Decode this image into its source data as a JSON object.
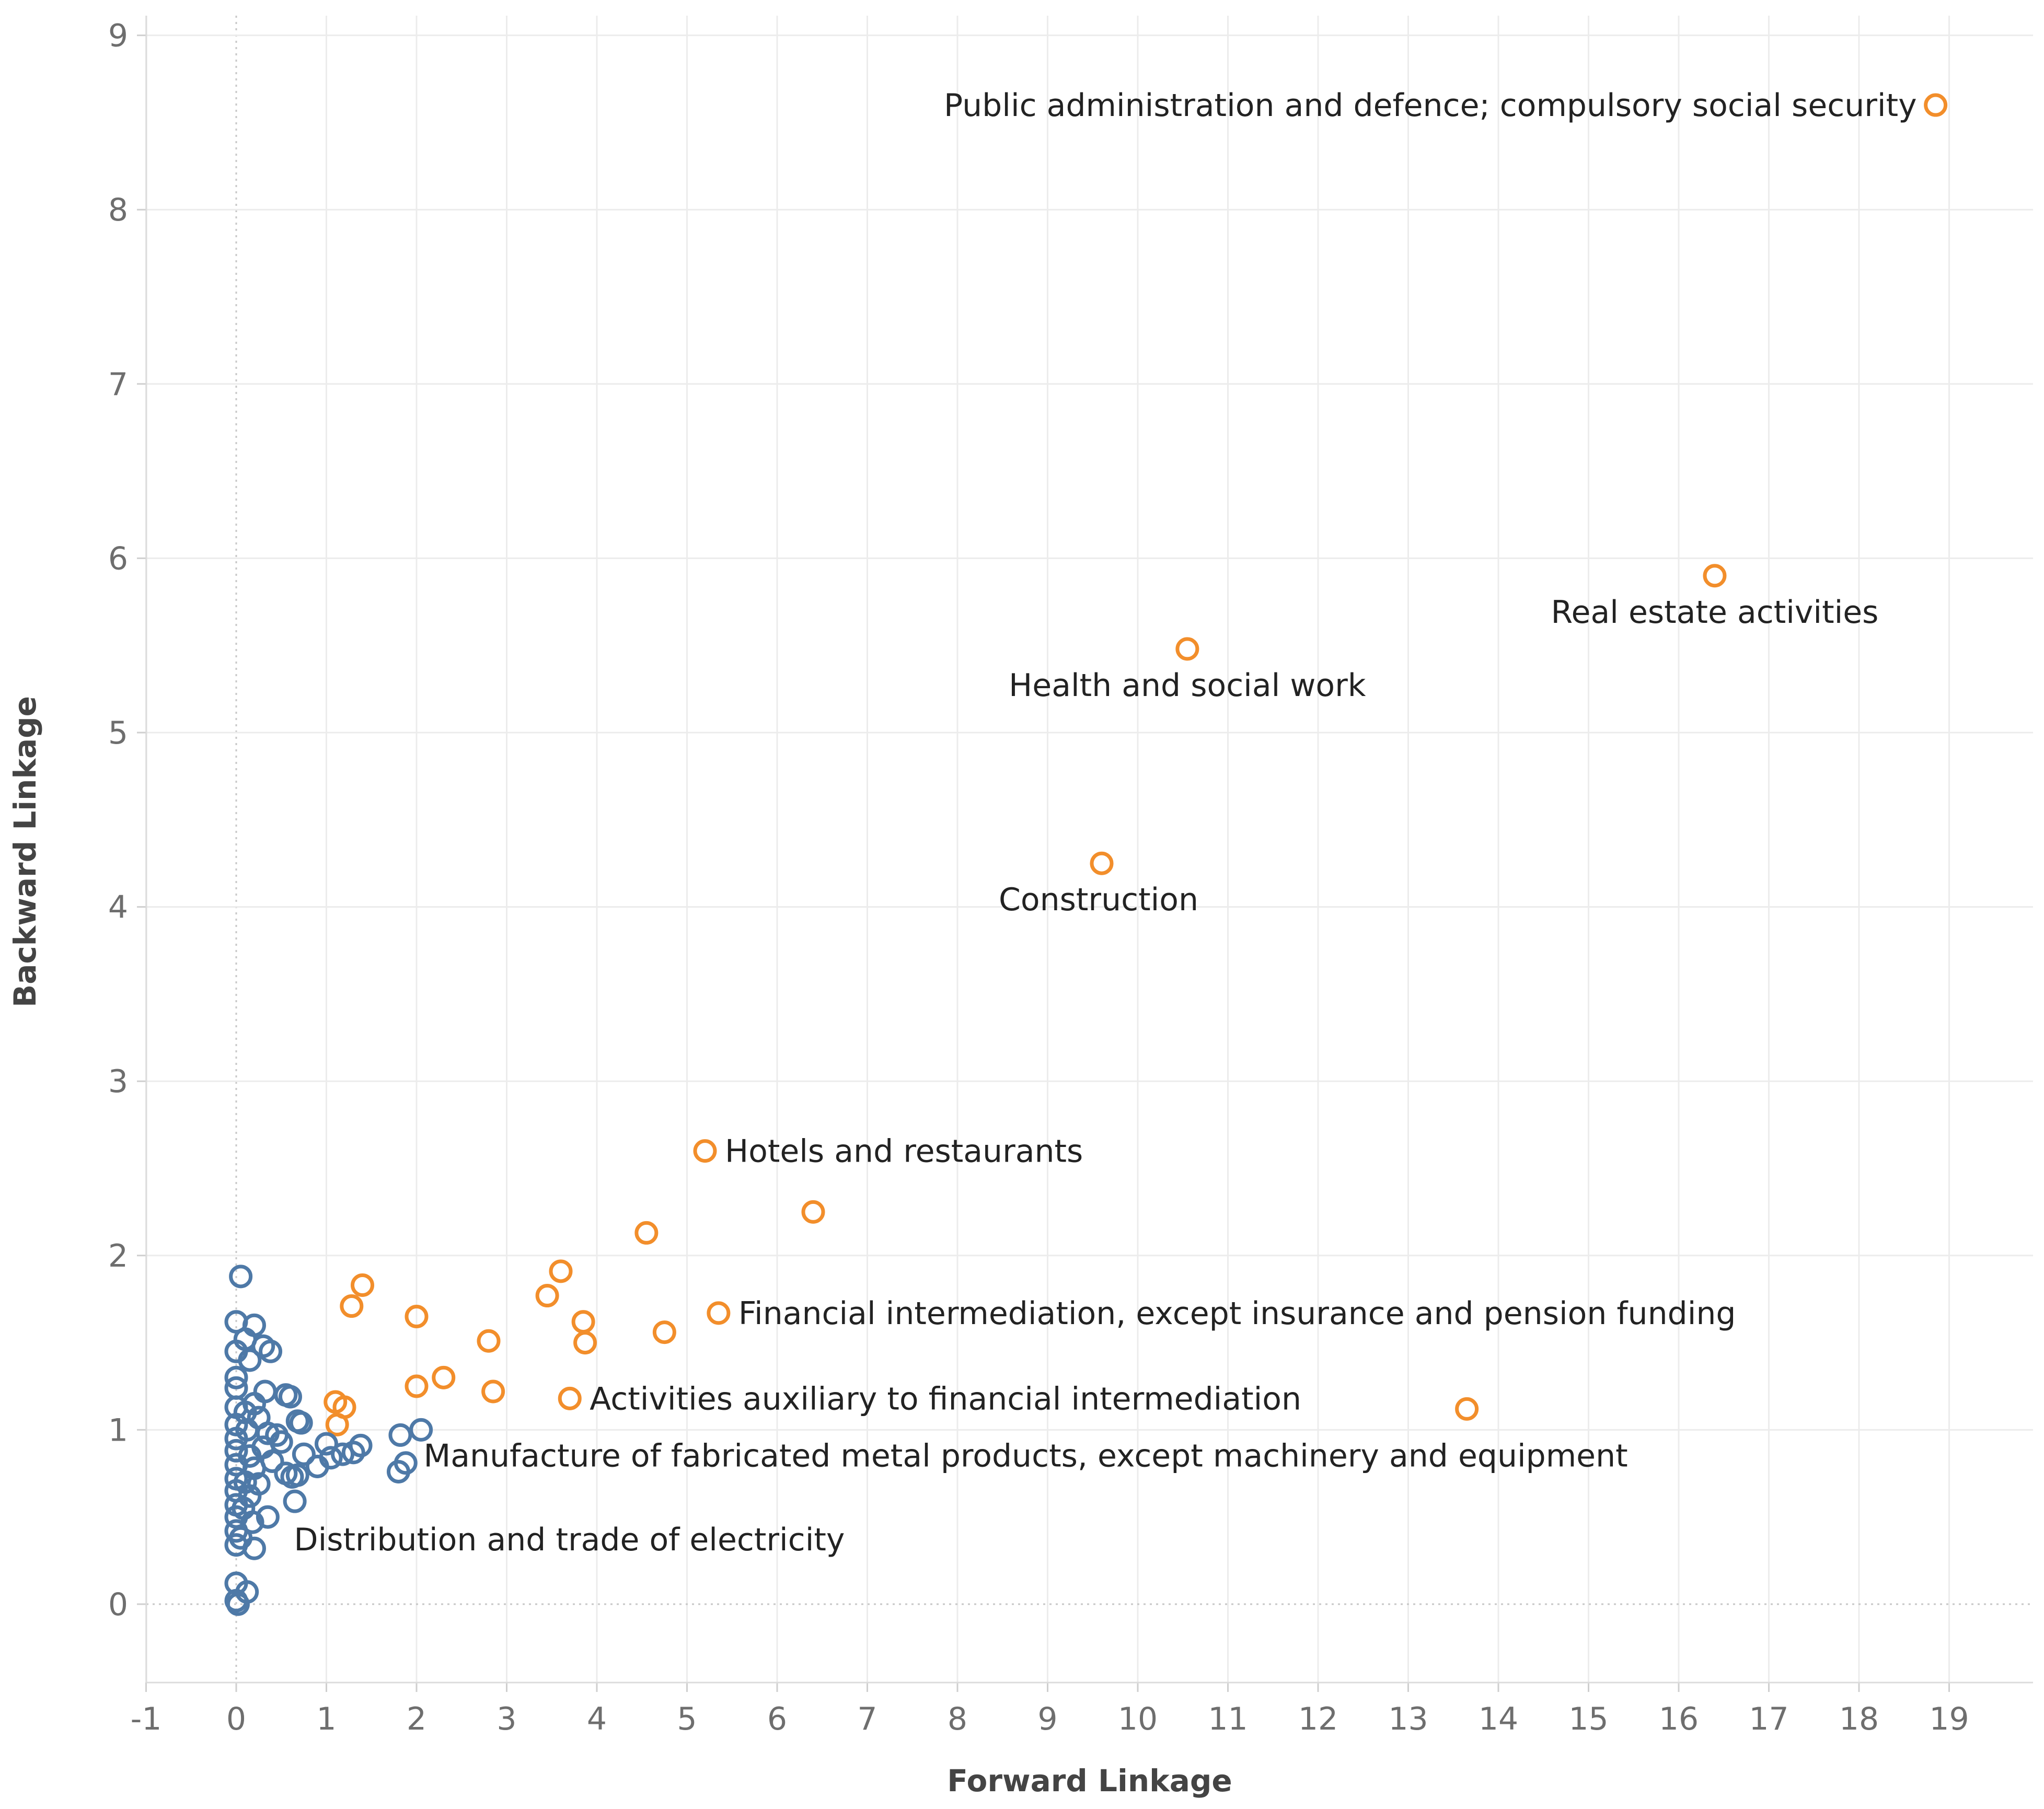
{
  "chart_data": {
    "type": "scatter",
    "title": "",
    "xlabel": "Forward Linkage",
    "ylabel": "Backward Linkage",
    "xlim": [
      -1,
      19
    ],
    "ylim": [
      0,
      9
    ],
    "xticks": [
      "-1",
      "0",
      "1",
      "2",
      "3",
      "4",
      "5",
      "6",
      "7",
      "8",
      "9",
      "10",
      "11",
      "12",
      "13",
      "14",
      "15",
      "16",
      "17",
      "18",
      "19"
    ],
    "yticks": [
      "0",
      "1",
      "2",
      "3",
      "4",
      "5",
      "6",
      "7",
      "8",
      "9"
    ],
    "grid": true,
    "colors": {
      "blue": "#4e79a7",
      "orange": "#f28e2b"
    },
    "series": [
      {
        "name": "orange",
        "color": "#f28e2b",
        "points": [
          {
            "x": 18.85,
            "y": 8.6,
            "label": "Public administration and defence; compulsory social security"
          },
          {
            "x": 16.4,
            "y": 5.9,
            "label": "Real estate activities"
          },
          {
            "x": 10.55,
            "y": 5.48,
            "label": "Health and social work"
          },
          {
            "x": 9.6,
            "y": 4.25,
            "label": "Construction"
          },
          {
            "x": 5.2,
            "y": 2.6,
            "label": "Hotels and restaurants"
          },
          {
            "x": 6.4,
            "y": 2.25
          },
          {
            "x": 4.55,
            "y": 2.13
          },
          {
            "x": 3.6,
            "y": 1.91
          },
          {
            "x": 3.45,
            "y": 1.77
          },
          {
            "x": 3.85,
            "y": 1.62
          },
          {
            "x": 3.87,
            "y": 1.5
          },
          {
            "x": 4.75,
            "y": 1.56
          },
          {
            "x": 5.35,
            "y": 1.67,
            "label": "Financial intermediation, except insurance and pension funding"
          },
          {
            "x": 1.4,
            "y": 1.83
          },
          {
            "x": 1.28,
            "y": 1.71
          },
          {
            "x": 2.0,
            "y": 1.65
          },
          {
            "x": 2.8,
            "y": 1.51
          },
          {
            "x": 2.3,
            "y": 1.3
          },
          {
            "x": 2.0,
            "y": 1.25
          },
          {
            "x": 2.85,
            "y": 1.22
          },
          {
            "x": 3.7,
            "y": 1.18,
            "label": "Activities auxiliary to financial intermediation"
          },
          {
            "x": 1.1,
            "y": 1.16
          },
          {
            "x": 1.2,
            "y": 1.13
          },
          {
            "x": 1.12,
            "y": 1.03
          },
          {
            "x": 13.65,
            "y": 1.12
          }
        ]
      },
      {
        "name": "blue",
        "color": "#4e79a7",
        "points": [
          {
            "x": 1.8,
            "y": 0.76,
            "label": "Manufacture of fabricated metal products, except machinery and equipment"
          },
          {
            "x": 0.35,
            "y": 0.5,
            "label": "Distribution and trade of electricity"
          },
          {
            "x": 0.05,
            "y": 1.88
          },
          {
            "x": 0.0,
            "y": 1.62
          },
          {
            "x": 0.2,
            "y": 1.6
          },
          {
            "x": 0.1,
            "y": 1.52
          },
          {
            "x": 0.3,
            "y": 1.48
          },
          {
            "x": 0.38,
            "y": 1.45
          },
          {
            "x": 0.0,
            "y": 1.45
          },
          {
            "x": 0.15,
            "y": 1.4
          },
          {
            "x": 0.0,
            "y": 1.3
          },
          {
            "x": 0.0,
            "y": 1.24
          },
          {
            "x": 0.32,
            "y": 1.22
          },
          {
            "x": 0.55,
            "y": 1.2
          },
          {
            "x": 0.6,
            "y": 1.19
          },
          {
            "x": 0.2,
            "y": 1.15
          },
          {
            "x": 0.0,
            "y": 1.13
          },
          {
            "x": 0.1,
            "y": 1.1
          },
          {
            "x": 0.25,
            "y": 1.07
          },
          {
            "x": 0.68,
            "y": 1.05
          },
          {
            "x": 0.72,
            "y": 1.04
          },
          {
            "x": 0.0,
            "y": 1.03
          },
          {
            "x": 0.12,
            "y": 1.0
          },
          {
            "x": 0.35,
            "y": 0.98
          },
          {
            "x": 0.45,
            "y": 0.97
          },
          {
            "x": 2.05,
            "y": 1.0
          },
          {
            "x": 1.82,
            "y": 0.97
          },
          {
            "x": 0.0,
            "y": 0.95
          },
          {
            "x": 0.5,
            "y": 0.93
          },
          {
            "x": 1.0,
            "y": 0.92
          },
          {
            "x": 1.38,
            "y": 0.91
          },
          {
            "x": 0.3,
            "y": 0.9
          },
          {
            "x": 0.0,
            "y": 0.88
          },
          {
            "x": 1.3,
            "y": 0.87
          },
          {
            "x": 0.75,
            "y": 0.86
          },
          {
            "x": 1.18,
            "y": 0.86
          },
          {
            "x": 0.15,
            "y": 0.85
          },
          {
            "x": 1.05,
            "y": 0.84
          },
          {
            "x": 0.4,
            "y": 0.82
          },
          {
            "x": 1.88,
            "y": 0.81
          },
          {
            "x": 0.0,
            "y": 0.8
          },
          {
            "x": 0.9,
            "y": 0.79
          },
          {
            "x": 0.2,
            "y": 0.78
          },
          {
            "x": 0.55,
            "y": 0.75
          },
          {
            "x": 0.62,
            "y": 0.73
          },
          {
            "x": 0.68,
            "y": 0.74
          },
          {
            "x": 0.0,
            "y": 0.72
          },
          {
            "x": 0.1,
            "y": 0.7
          },
          {
            "x": 0.25,
            "y": 0.69
          },
          {
            "x": 0.0,
            "y": 0.65
          },
          {
            "x": 0.15,
            "y": 0.62
          },
          {
            "x": 0.65,
            "y": 0.59
          },
          {
            "x": 0.0,
            "y": 0.57
          },
          {
            "x": 0.08,
            "y": 0.55
          },
          {
            "x": 0.0,
            "y": 0.5
          },
          {
            "x": 0.18,
            "y": 0.47
          },
          {
            "x": 0.0,
            "y": 0.42
          },
          {
            "x": 0.05,
            "y": 0.38
          },
          {
            "x": 0.0,
            "y": 0.34
          },
          {
            "x": 0.2,
            "y": 0.32
          },
          {
            "x": 0.0,
            "y": 0.12
          },
          {
            "x": 0.12,
            "y": 0.07
          },
          {
            "x": 0.0,
            "y": 0.02
          },
          {
            "x": 0.02,
            "y": 0.0
          }
        ]
      }
    ]
  }
}
